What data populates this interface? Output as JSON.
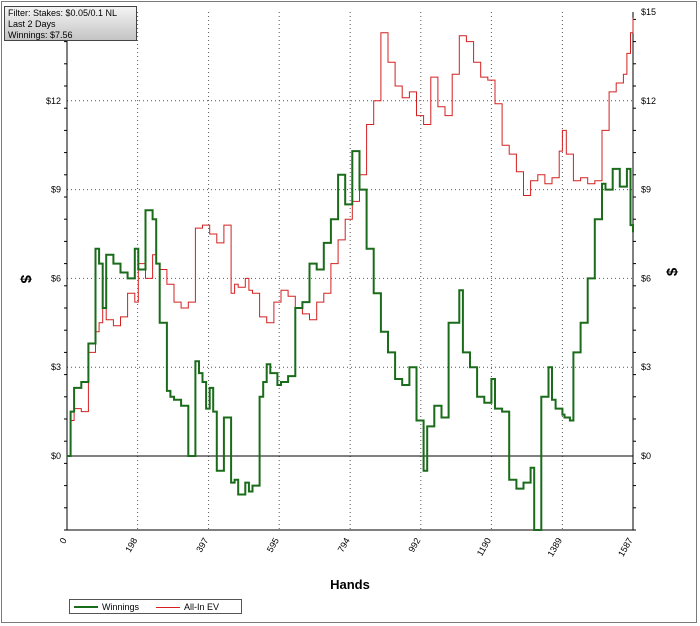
{
  "filter_box": {
    "line1": "Filter: Stakes: $0.05/0.1 NL",
    "line2": "Last  2 Days",
    "line3": "Winnings: $7.56"
  },
  "colors": {
    "winnings": "#1a6b1a",
    "allin_ev": "#d42020",
    "zero_line": "#000000",
    "grid": "#555555"
  },
  "chart_data": {
    "type": "line",
    "title": "",
    "xlabel": "Hands",
    "ylabel": "$",
    "xlim": [
      0,
      1587
    ],
    "ylim": [
      -2.5,
      15
    ],
    "x_ticks": [
      0,
      198,
      397,
      595,
      794,
      992,
      1190,
      1389,
      1587
    ],
    "y_ticks": [
      0,
      3,
      6,
      9,
      12,
      15
    ],
    "y_tick_labels": [
      "$0",
      "$3",
      "$6",
      "$9",
      "$12",
      "$15"
    ],
    "grid": true,
    "legend": "bottom-left",
    "series": [
      {
        "name": "Winnings",
        "x": [
          0,
          10,
          20,
          40,
          60,
          80,
          90,
          100,
          110,
          130,
          150,
          170,
          190,
          200,
          220,
          240,
          250,
          260,
          280,
          290,
          300,
          320,
          340,
          360,
          370,
          380,
          390,
          400,
          410,
          420,
          440,
          460,
          470,
          480,
          500,
          510,
          520,
          540,
          550,
          560,
          570,
          590,
          600,
          620,
          640,
          660,
          680,
          700,
          720,
          740,
          760,
          780,
          800,
          820,
          840,
          860,
          880,
          900,
          920,
          940,
          960,
          980,
          1000,
          1010,
          1030,
          1050,
          1070,
          1100,
          1110,
          1130,
          1150,
          1170,
          1190,
          1200,
          1220,
          1240,
          1260,
          1280,
          1300,
          1310,
          1330,
          1350,
          1360,
          1370,
          1389,
          1395,
          1410,
          1420,
          1440,
          1460,
          1480,
          1500,
          1510,
          1530,
          1550,
          1570,
          1580,
          1587
        ],
        "y": [
          0,
          1.5,
          2.3,
          2.5,
          3.8,
          7.0,
          6.5,
          5.0,
          6.8,
          6.5,
          6.2,
          6.0,
          7.0,
          6.3,
          8.3,
          8.0,
          6.5,
          4.5,
          2.2,
          2.0,
          1.9,
          1.7,
          0.0,
          3.2,
          2.8,
          2.5,
          1.6,
          2.3,
          1.5,
          -0.5,
          1.3,
          -0.9,
          -0.8,
          -1.3,
          -0.9,
          -1.2,
          -1.0,
          2.0,
          2.5,
          3.1,
          2.8,
          2.4,
          2.5,
          2.7,
          5.0,
          5.2,
          6.5,
          6.3,
          7.2,
          8.0,
          9.5,
          8.5,
          10.3,
          9.0,
          7.0,
          5.5,
          4.2,
          3.5,
          2.6,
          2.4,
          3.0,
          1.2,
          -0.5,
          1.0,
          1.7,
          1.3,
          4.5,
          5.6,
          3.5,
          3.0,
          2.0,
          1.8,
          2.6,
          1.6,
          1.5,
          -0.8,
          -1.1,
          -0.9,
          -0.4,
          -2.5,
          2.0,
          3.0,
          1.9,
          1.6,
          1.4,
          1.3,
          1.2,
          3.5,
          4.5,
          6.0,
          8.0,
          9.2,
          9.0,
          9.7,
          9.1,
          9.7,
          7.8,
          7.56
        ]
      },
      {
        "name": "All-In EV",
        "x": [
          0,
          10,
          20,
          40,
          60,
          80,
          90,
          100,
          110,
          130,
          150,
          170,
          190,
          200,
          220,
          240,
          250,
          260,
          280,
          300,
          320,
          340,
          360,
          380,
          400,
          420,
          440,
          460,
          470,
          480,
          500,
          510,
          520,
          540,
          560,
          580,
          600,
          620,
          640,
          660,
          680,
          700,
          720,
          740,
          760,
          780,
          800,
          820,
          840,
          860,
          880,
          900,
          920,
          940,
          960,
          980,
          1000,
          1020,
          1040,
          1060,
          1080,
          1100,
          1120,
          1140,
          1160,
          1180,
          1200,
          1220,
          1240,
          1260,
          1280,
          1300,
          1320,
          1340,
          1360,
          1380,
          1389,
          1400,
          1420,
          1440,
          1460,
          1480,
          1500,
          1520,
          1540,
          1560,
          1570,
          1580,
          1587
        ],
        "y": [
          0,
          1.2,
          1.6,
          1.5,
          3.5,
          4.2,
          4.5,
          5.0,
          4.6,
          4.4,
          4.7,
          5.5,
          5.2,
          6.5,
          6.0,
          6.8,
          6.5,
          6.3,
          5.8,
          5.2,
          5.0,
          5.2,
          7.7,
          7.8,
          7.5,
          7.2,
          7.8,
          5.5,
          5.8,
          5.7,
          6.0,
          5.6,
          5.5,
          4.7,
          4.5,
          5.2,
          5.6,
          5.4,
          5.0,
          4.8,
          4.6,
          5.2,
          5.5,
          6.5,
          7.3,
          8.0,
          8.6,
          9.5,
          11.2,
          12.0,
          14.3,
          13.3,
          12.5,
          12.1,
          12.3,
          11.5,
          11.2,
          12.8,
          11.8,
          11.5,
          12.9,
          14.2,
          14.0,
          13.3,
          12.8,
          12.7,
          11.9,
          10.5,
          10.2,
          9.6,
          8.8,
          9.3,
          9.5,
          9.2,
          9.4,
          10.3,
          11.0,
          10.2,
          9.3,
          9.4,
          9.2,
          9.3,
          11.0,
          12.3,
          12.6,
          12.9,
          13.6,
          14.3,
          14.8
        ]
      }
    ]
  }
}
